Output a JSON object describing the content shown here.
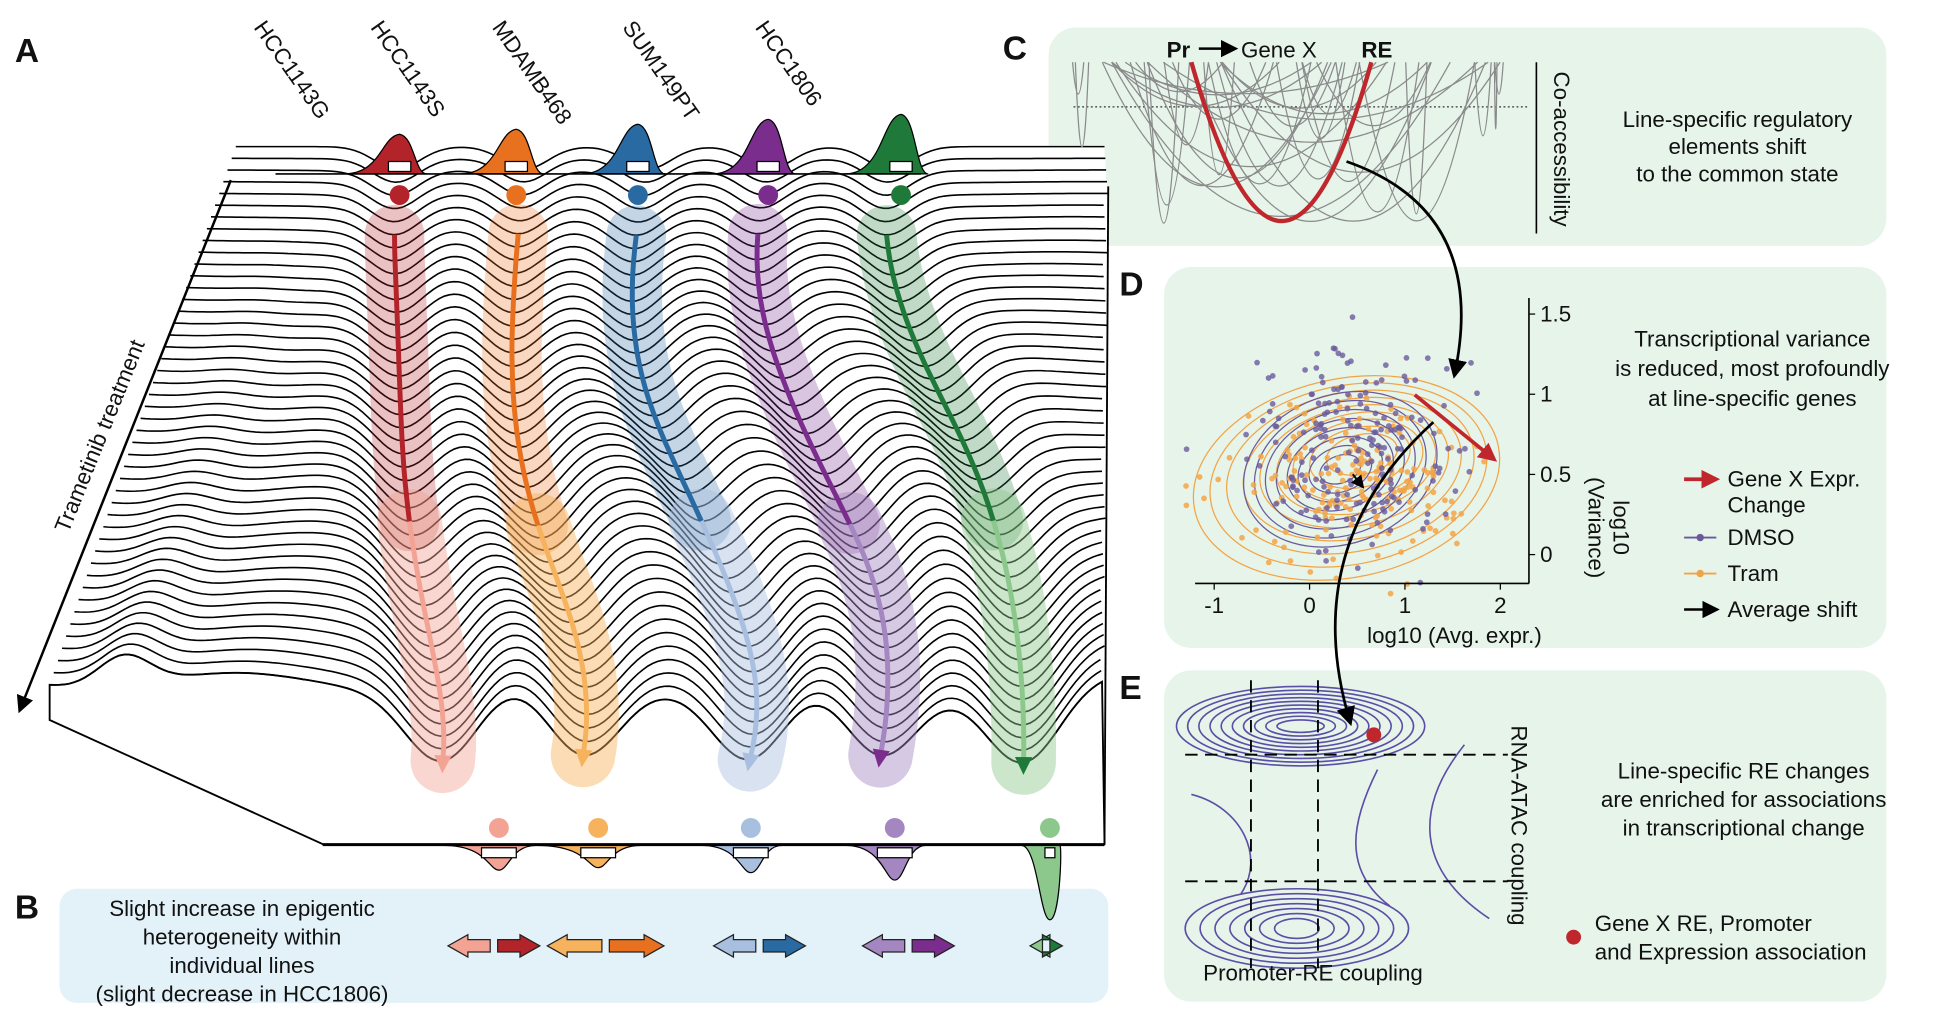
{
  "panel_a": {
    "label": "A",
    "cell_lines": [
      "HCC1143G",
      "HCC1143S",
      "MDAMB468",
      "SUM149PT",
      "HCC1806"
    ],
    "axis_label": "Trametinib treatment",
    "colors": [
      "#b2242a",
      "#e8711f",
      "#2a6aa3",
      "#7b2d8e",
      "#1f7a3a"
    ],
    "light_colors": [
      "#f2a394",
      "#f6b25c",
      "#a9bfdf",
      "#a487c1",
      "#8cc88c"
    ]
  },
  "panel_b": {
    "label": "B",
    "text": [
      "Slight increase in epigentic",
      "heterogeneity within",
      "individual lines",
      "(slight decrease in HCC1806)"
    ]
  },
  "panel_c": {
    "label": "C",
    "promoter": "Pr",
    "gene": "Gene X",
    "re": "RE",
    "axis_label": "Co-accessibility",
    "text": [
      "Line-specific regulatory",
      "elements shift",
      "to the common state"
    ]
  },
  "panel_d": {
    "label": "D",
    "xlabel": "log10 (Avg. expr.)",
    "ylabel": [
      "log10",
      "(Variance)"
    ],
    "xlim": [
      -1.2,
      2.3
    ],
    "ylim": [
      -0.18,
      1.6
    ],
    "xticks": [
      -1,
      0,
      1,
      2
    ],
    "yticks": [
      0,
      0.5,
      1,
      1.5
    ],
    "text": [
      "Transcriptional variance",
      "is reduced, most profoundly",
      "at line-specific genes"
    ],
    "legend": [
      {
        "lines": [
          "Gene X Expr.",
          "Change"
        ],
        "color": "#c0272d"
      },
      {
        "lines": [
          "DMSO"
        ],
        "color": "#6a5a9c"
      },
      {
        "lines": [
          "Tram"
        ],
        "color": "#f2a445"
      },
      {
        "lines": [
          "Average shift"
        ],
        "color": "#000000"
      }
    ]
  },
  "panel_e": {
    "label": "E",
    "xlabel": "Promoter-RE coupling",
    "ylabel": "RNA-ATAC coupling",
    "text": [
      "Line-specific RE changes",
      "are enriched for associations",
      "in transcriptional change"
    ],
    "legend": [
      "Gene X RE, Promoter",
      "and Expression association"
    ],
    "dot_color": "#c0272d"
  }
}
